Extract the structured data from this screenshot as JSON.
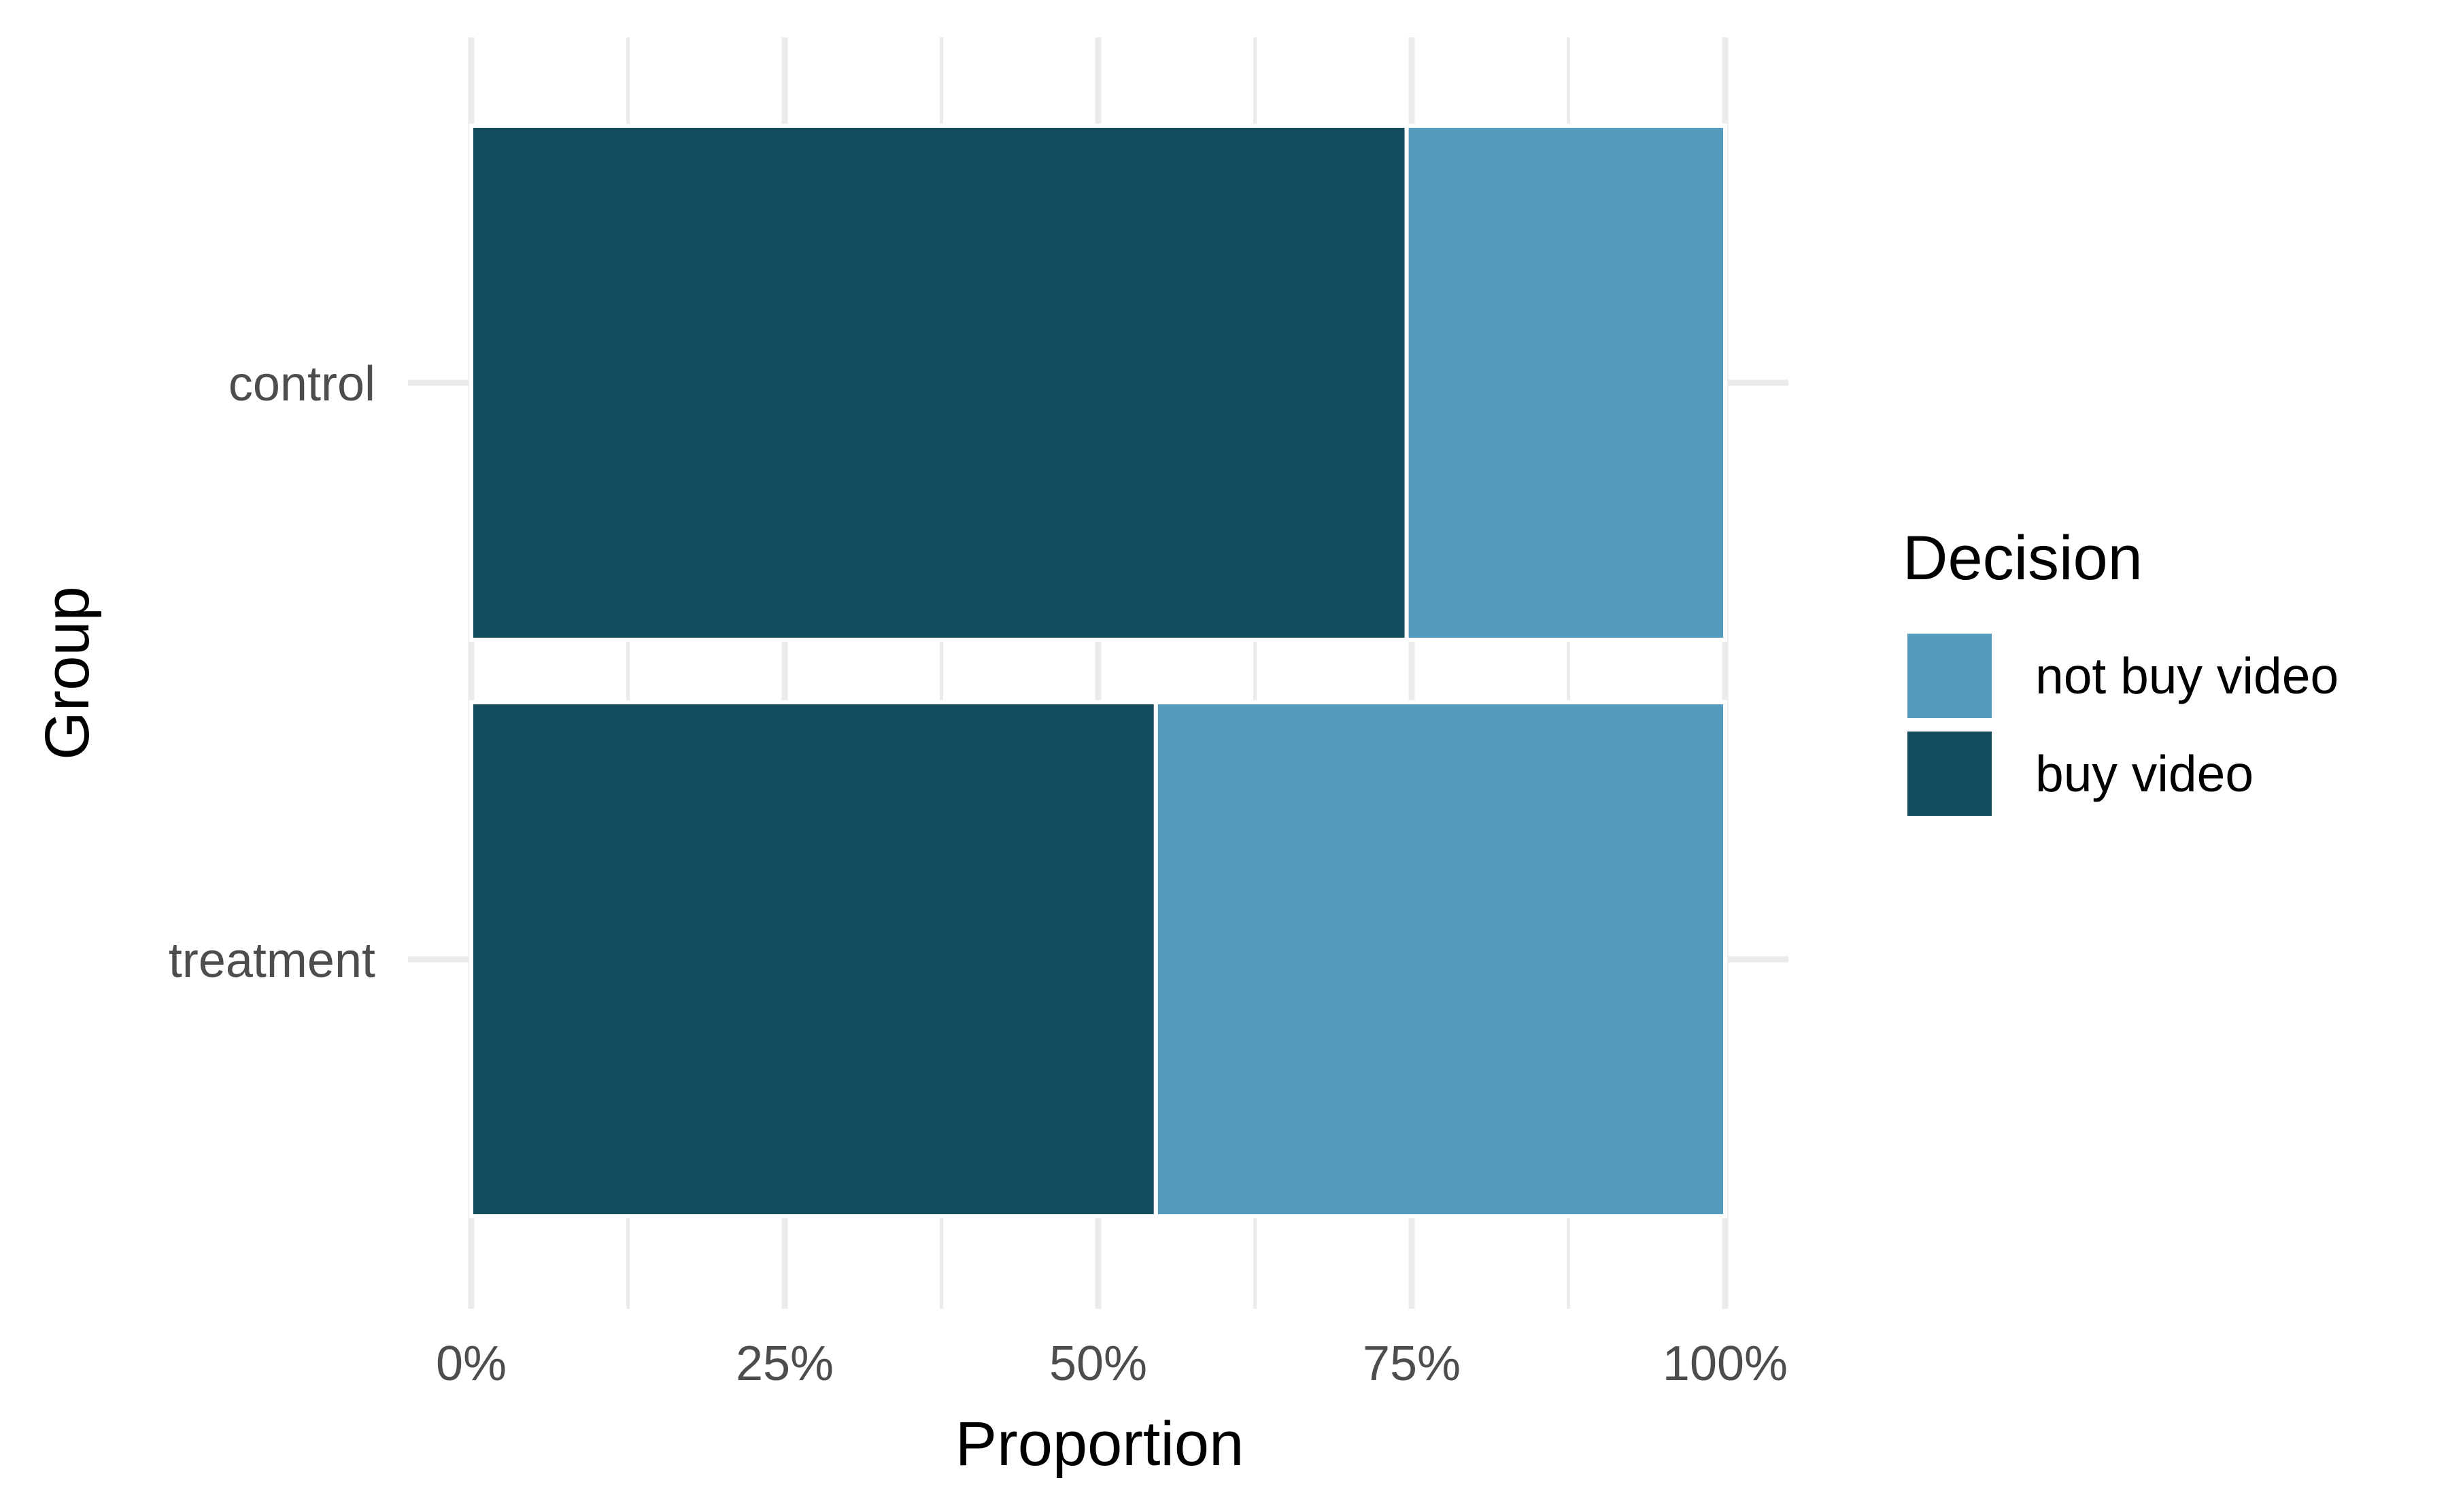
{
  "chart_data": {
    "type": "bar",
    "orientation": "horizontal",
    "stacked": "proportion",
    "categories": [
      "control",
      "treatment"
    ],
    "series": [
      {
        "name": "buy video",
        "values": [
          0.746,
          0.546
        ],
        "color": "#134B5F"
      },
      {
        "name": "not buy video",
        "values": [
          0.254,
          0.454
        ],
        "color": "#569BBE"
      }
    ],
    "xlabel": "Proportion",
    "ylabel": "Group",
    "xlim": [
      0,
      1
    ],
    "x_ticks": [
      0,
      0.25,
      0.5,
      0.75,
      1
    ],
    "x_tick_labels": [
      "0%",
      "25%",
      "50%",
      "75%",
      "100%"
    ],
    "grid": true,
    "legend": {
      "title": "Decision",
      "position": "right",
      "entries": [
        {
          "label": "not buy video",
          "color": "#569BBE"
        },
        {
          "label": "buy video",
          "color": "#134B5F"
        }
      ]
    }
  }
}
